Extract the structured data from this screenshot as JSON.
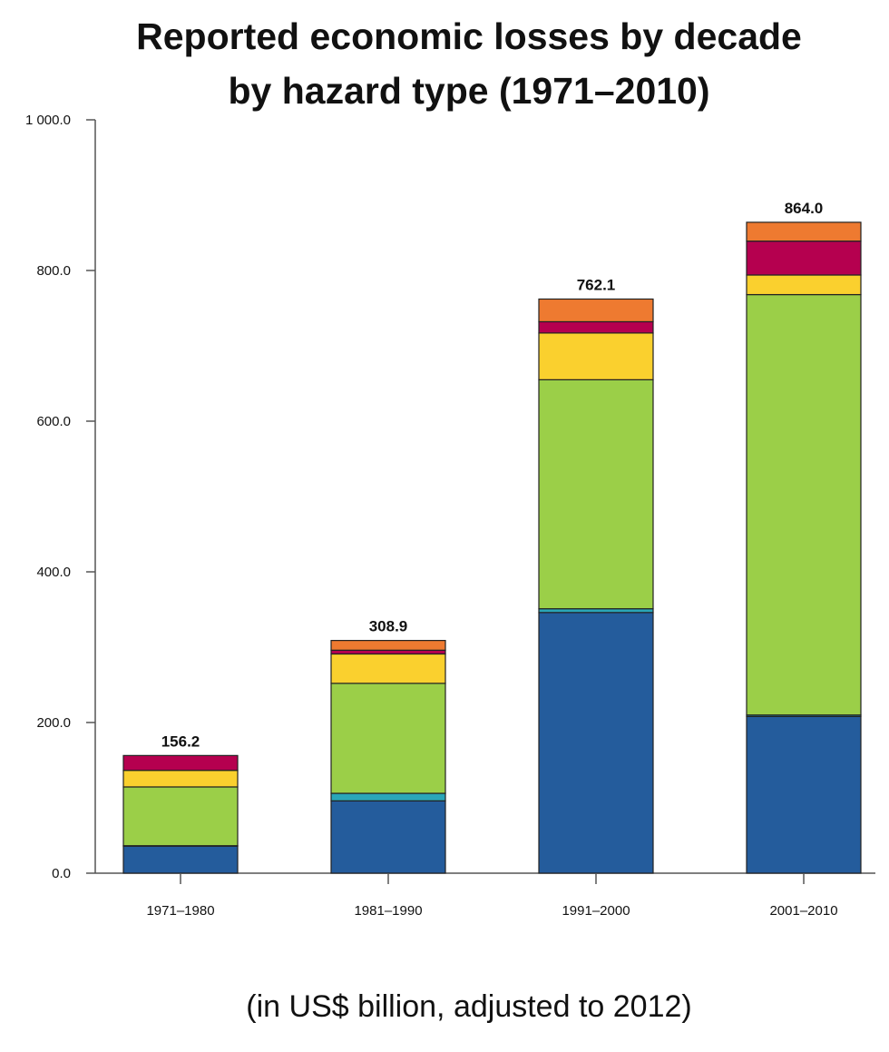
{
  "chart_data": {
    "type": "bar",
    "stacked": true,
    "title": [
      "Reported economic losses by decade",
      "by hazard type (1971–2010)"
    ],
    "subtitle": "(in US$ billion, adjusted to 2012)",
    "categories": [
      "1971–1980",
      "1981–1990",
      "1991–2000",
      "2001–2010"
    ],
    "totals": [
      "156.2",
      "308.9",
      "762.1",
      "864.0"
    ],
    "series": [
      {
        "color": "#245c9c",
        "values": [
          36,
          96,
          346,
          208
        ]
      },
      {
        "color": "#2aa6b8",
        "values": [
          0.5,
          10,
          5,
          2
        ]
      },
      {
        "color": "#9bcf48",
        "values": [
          78,
          146,
          304,
          558
        ]
      },
      {
        "color": "#fad02e",
        "values": [
          22,
          39,
          62,
          26
        ]
      },
      {
        "color": "#b5004f",
        "values": [
          19.7,
          5,
          15,
          45
        ]
      },
      {
        "color": "#ee7a30",
        "values": [
          0,
          12.9,
          30.1,
          25
        ]
      }
    ],
    "yticks": [
      "0.0",
      "200.0",
      "400.0",
      "600.0",
      "800.0",
      "1 000.0"
    ],
    "ylim": [
      0,
      1000
    ],
    "grid": false,
    "legend": "none"
  }
}
